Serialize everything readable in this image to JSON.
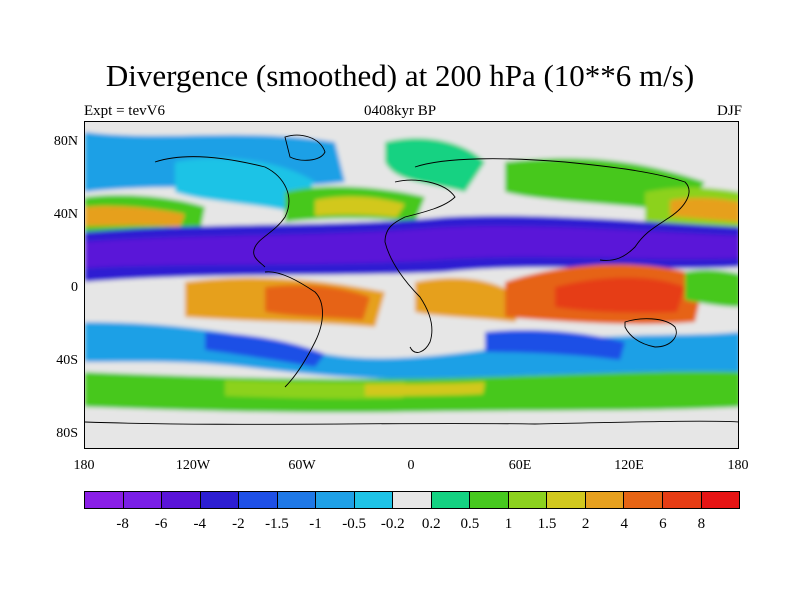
{
  "title": "Divergence (smoothed) at 200 hPa (10**6 m/s)",
  "subtitle_left": "Expt = tevV6",
  "subtitle_center": "0408kyr BP",
  "subtitle_right": "DJF",
  "lat_ticks": [
    "80N",
    "40N",
    "0",
    "40S",
    "80S"
  ],
  "lon_ticks": [
    "180",
    "120W",
    "60W",
    "0",
    "60E",
    "120E",
    "180"
  ],
  "colorbar": {
    "labels": [
      "-8",
      "-6",
      "-4",
      "-2",
      "-1.5",
      "-1",
      "-0.5",
      "-0.2",
      "0.2",
      "0.5",
      "1",
      "1.5",
      "2",
      "4",
      "6",
      "8"
    ],
    "colors": [
      "#8a1ee6",
      "#7a1ee6",
      "#5a14d8",
      "#2d1ed2",
      "#1e50e6",
      "#1e78e6",
      "#1ea0e6",
      "#1ec3e6",
      "#e6e6e6",
      "#14d282",
      "#46c81e",
      "#8cd21e",
      "#d2c81e",
      "#e6a01e",
      "#e66414",
      "#e63c14",
      "#e61414"
    ]
  }
}
